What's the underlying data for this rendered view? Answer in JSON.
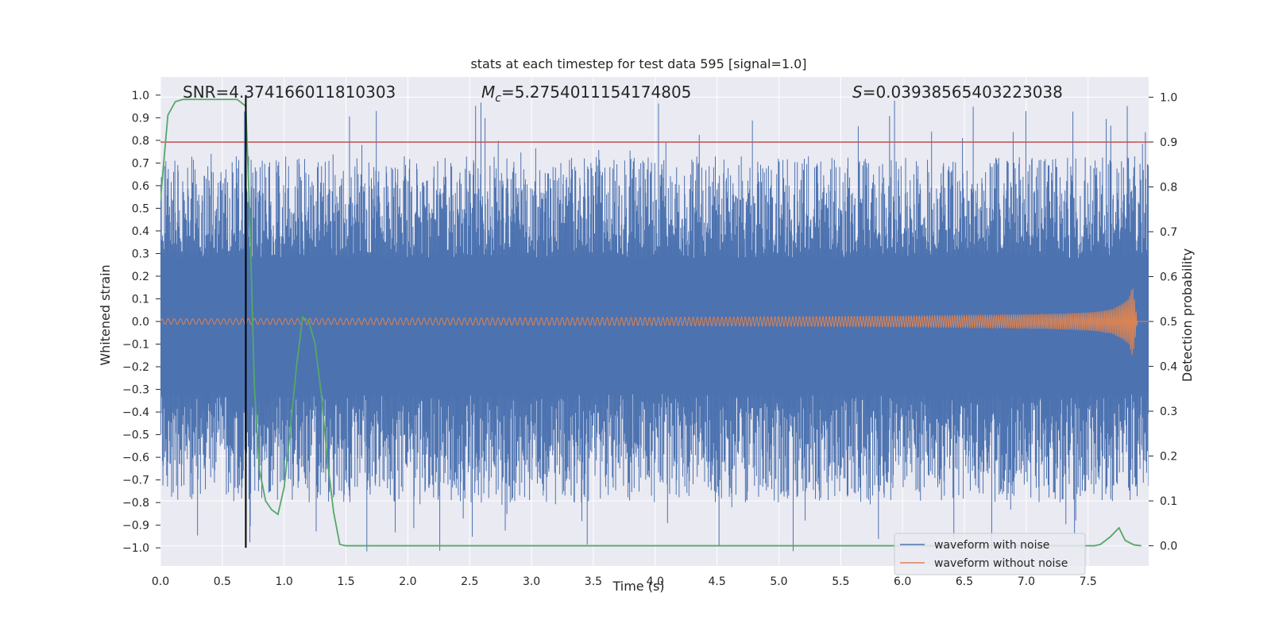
{
  "chart_data": {
    "type": "line",
    "title": "stats at each timestep for test data 595 [signal=1.0]",
    "xlabel": "Time (s)",
    "ylabel": "Whitened strain",
    "y2label": "Detection probability",
    "xlim": [
      0.0,
      7.99
    ],
    "ylim": [
      -1.08,
      1.08
    ],
    "y2lim": [
      -0.045,
      1.045
    ],
    "x_ticks": [
      "0.0",
      "0.5",
      "1.0",
      "1.5",
      "2.0",
      "2.5",
      "3.0",
      "3.5",
      "4.0",
      "4.5",
      "5.0",
      "5.5",
      "6.0",
      "6.5",
      "7.0",
      "7.5"
    ],
    "y_ticks": [
      "1.0",
      "0.9",
      "0.8",
      "0.7",
      "0.6",
      "0.5",
      "0.4",
      "0.3",
      "0.2",
      "0.1",
      "0.0",
      "−0.1",
      "−0.2",
      "−0.3",
      "−0.4",
      "−0.5",
      "−0.6",
      "−0.7",
      "−0.8",
      "−0.9",
      "−1.0"
    ],
    "y2_ticks": [
      "1.0",
      "0.9",
      "0.8",
      "0.7",
      "0.6",
      "0.5",
      "0.4",
      "0.3",
      "0.2",
      "0.1",
      "0.0"
    ],
    "annotations": {
      "snr": "SNR=4.374166011810303",
      "mc_symbol": "M",
      "mc_sub": "c",
      "mc_value": "=5.2754011154174805",
      "s_symbol": "S",
      "s_value": "=0.03938565403223038"
    },
    "threshold": {
      "value": 0.9,
      "axis": "right",
      "color": "#c44e52"
    },
    "marker_time": 0.69,
    "series": [
      {
        "name": "waveform with noise",
        "color": "#4c72b0",
        "axis": "left",
        "noise_upper": 0.6,
        "noise_lower": -0.6,
        "band": 0.2
      },
      {
        "name": "waveform without noise",
        "color": "#dd8452",
        "axis": "left",
        "envelope_t": [
          0.0,
          2.0,
          4.0,
          5.0,
          6.0,
          6.5,
          7.0,
          7.3,
          7.5,
          7.6,
          7.7,
          7.78,
          7.83,
          7.86,
          7.9,
          7.99
        ],
        "envelope_a": [
          0.012,
          0.015,
          0.018,
          0.021,
          0.024,
          0.027,
          0.031,
          0.035,
          0.04,
          0.045,
          0.055,
          0.08,
          0.1,
          0.16,
          0.0,
          0.0
        ]
      },
      {
        "name": "detection probability",
        "color": "#55a868",
        "axis": "right",
        "t": [
          0.0,
          0.06,
          0.12,
          0.18,
          0.25,
          0.35,
          0.45,
          0.55,
          0.62,
          0.69,
          0.72,
          0.76,
          0.8,
          0.85,
          0.9,
          0.95,
          1.0,
          1.05,
          1.1,
          1.15,
          1.2,
          1.25,
          1.3,
          1.35,
          1.4,
          1.45,
          1.5,
          2.0,
          4.0,
          6.0,
          7.2,
          7.4,
          7.55,
          7.6,
          7.68,
          7.75,
          7.8,
          7.87,
          7.93
        ],
        "p": [
          0.77,
          0.96,
          0.99,
          0.995,
          0.995,
          0.995,
          0.995,
          0.995,
          0.995,
          0.98,
          0.75,
          0.35,
          0.17,
          0.1,
          0.08,
          0.07,
          0.13,
          0.26,
          0.4,
          0.51,
          0.5,
          0.45,
          0.34,
          0.19,
          0.075,
          0.003,
          0.0,
          0.0,
          0.0,
          0.0,
          0.0,
          0.0,
          0.0,
          0.003,
          0.02,
          0.04,
          0.012,
          0.002,
          0.0
        ]
      }
    ],
    "legend": {
      "position": "lower-right",
      "entries": [
        {
          "label": "waveform with noise",
          "color": "#4c72b0"
        },
        {
          "label": "waveform without noise",
          "color": "#dd8452"
        }
      ]
    }
  }
}
